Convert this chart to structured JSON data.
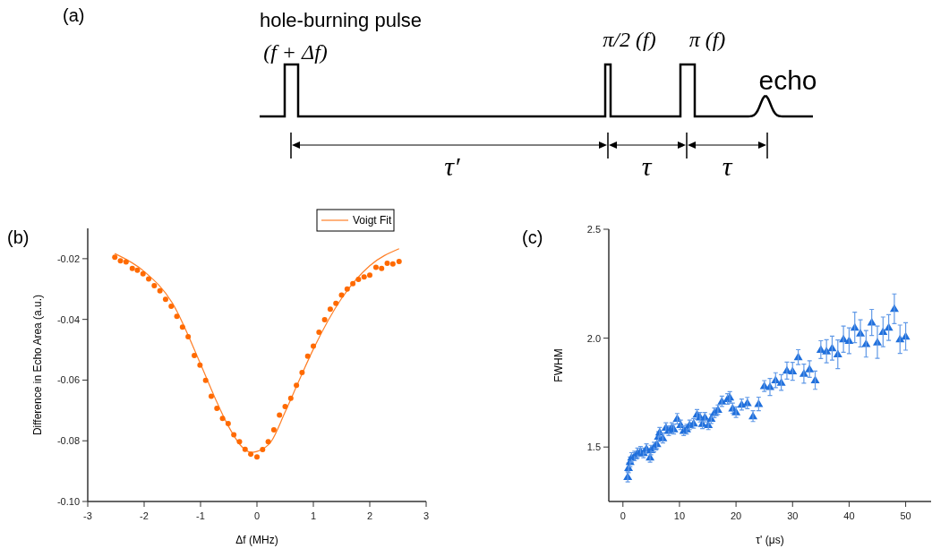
{
  "chart_data": [
    {
      "type": "other",
      "title": "(a)",
      "annotations": [
        "hole-burning pulse",
        "(f + Δf)",
        "π/2 (f)",
        "π (f)",
        "echo",
        "τ′",
        "τ",
        "τ"
      ]
    },
    {
      "type": "scatter",
      "title": "(b)",
      "xlabel": "Δf (MHz)",
      "ylabel": "Difference in Echo Area (a.u.)",
      "xlim": [
        -3,
        3
      ],
      "ylim": [
        -0.1,
        -0.01
      ],
      "xticks": [
        -3,
        -2,
        -1,
        0,
        1,
        2,
        3
      ],
      "yticks": [
        {
          "value": -0.1,
          "label": "-0.10"
        },
        {
          "value": -0.08,
          "label": "-0.08"
        },
        {
          "value": -0.06,
          "label": "-0.06"
        },
        {
          "value": -0.04,
          "label": "-0.04"
        },
        {
          "value": -0.02,
          "label": "-0.02"
        }
      ],
      "legend": "top right",
      "series": [
        {
          "type": "scatter",
          "color": "#ff6a00",
          "marker": "circle",
          "x": [
            -2.52,
            -2.42,
            -2.32,
            -2.21,
            -2.12,
            -2.02,
            -1.92,
            -1.82,
            -1.72,
            -1.62,
            -1.52,
            -1.42,
            -1.32,
            -1.22,
            -1.11,
            -1.01,
            -0.91,
            -0.81,
            -0.71,
            -0.61,
            -0.51,
            -0.41,
            -0.31,
            -0.21,
            -0.11,
            0.0,
            0.1,
            0.2,
            0.3,
            0.4,
            0.5,
            0.6,
            0.7,
            0.8,
            0.9,
            1.0,
            1.1,
            1.2,
            1.3,
            1.4,
            1.5,
            1.6,
            1.7,
            1.8,
            1.9,
            2.0,
            2.11,
            2.21,
            2.31,
            2.41,
            2.52
          ],
          "values": [
            -0.0195,
            -0.0207,
            -0.0211,
            -0.0232,
            -0.0238,
            -0.025,
            -0.0267,
            -0.0289,
            -0.0306,
            -0.0334,
            -0.0357,
            -0.039,
            -0.0425,
            -0.0457,
            -0.0519,
            -0.0551,
            -0.0601,
            -0.0653,
            -0.0693,
            -0.0726,
            -0.0743,
            -0.078,
            -0.0803,
            -0.0828,
            -0.0844,
            -0.0853,
            -0.0829,
            -0.0803,
            -0.0764,
            -0.0715,
            -0.0687,
            -0.066,
            -0.0617,
            -0.0575,
            -0.0521,
            -0.0488,
            -0.0442,
            -0.0401,
            -0.0366,
            -0.0347,
            -0.032,
            -0.03,
            -0.0282,
            -0.0268,
            -0.026,
            -0.0254,
            -0.0228,
            -0.0232,
            -0.0215,
            -0.0217,
            -0.0209
          ]
        },
        {
          "type": "line",
          "name": "Voigt Fit",
          "color": "#ff7f27",
          "x": [
            -2.52,
            -2.0,
            -1.5,
            -1.0,
            -0.75,
            -0.5,
            -0.25,
            -0.1,
            0.0,
            0.25,
            0.5,
            0.75,
            1.0,
            1.5,
            2.0,
            2.52
          ],
          "values": [
            -0.0183,
            -0.0242,
            -0.0346,
            -0.0547,
            -0.0656,
            -0.0754,
            -0.0823,
            -0.0838,
            -0.0835,
            -0.0803,
            -0.0705,
            -0.06,
            -0.0498,
            -0.0331,
            -0.0223,
            -0.0167
          ]
        }
      ]
    },
    {
      "type": "scatter",
      "title": "(c)",
      "xlabel": "τ' (μs)",
      "ylabel": "FWHM",
      "xlim": [
        -2.5,
        54.5
      ],
      "ylim": [
        1.25,
        2.5
      ],
      "xticks": [
        0,
        10,
        20,
        30,
        40,
        50
      ],
      "yticks": [
        {
          "value": 1.5,
          "label": "1.5"
        },
        {
          "value": 2,
          "label": "2.0"
        },
        {
          "value": 2.5,
          "label": "2.5"
        }
      ],
      "marker": "triangle",
      "series": [
        {
          "type": "scatter",
          "color": "#1f6fdc",
          "x": [
            0.85,
            0.99,
            1.27,
            1.53,
            2.06,
            2.58,
            3.11,
            3.64,
            4.16,
            4.8,
            4.95,
            5.5,
            6.0,
            6.27,
            6.5,
            7.06,
            7.6,
            8.1,
            8.64,
            9.0,
            9.6,
            10.2,
            10.75,
            11.27,
            11.8,
            12.5,
            13.1,
            13.65,
            14.06,
            14.5,
            15.1,
            15.6,
            16.17,
            16.8,
            17.5,
            18.5,
            18.9,
            19.4,
            20,
            21,
            22,
            23,
            24,
            25,
            26,
            27,
            28,
            29,
            30,
            31,
            32,
            33,
            34,
            35,
            36,
            37,
            38,
            39,
            40,
            41,
            42,
            43,
            44,
            45,
            46,
            47,
            48,
            49,
            50
          ],
          "values": [
            1.363,
            1.404,
            1.432,
            1.452,
            1.459,
            1.473,
            1.48,
            1.473,
            1.493,
            1.452,
            1.486,
            1.5,
            1.514,
            1.548,
            1.568,
            1.541,
            1.589,
            1.575,
            1.589,
            1.582,
            1.63,
            1.602,
            1.575,
            1.582,
            1.602,
            1.609,
            1.65,
            1.637,
            1.607,
            1.637,
            1.602,
            1.63,
            1.657,
            1.671,
            1.71,
            1.721,
            1.728,
            1.678,
            1.66,
            1.695,
            1.702,
            1.642,
            1.698,
            1.78,
            1.776,
            1.807,
            1.796,
            1.851,
            1.848,
            1.913,
            1.837,
            1.858,
            1.807,
            1.947,
            1.94,
            1.954,
            1.926,
            1.995,
            1.988,
            2.049,
            2.022,
            1.974,
            2.072,
            1.981,
            2.029,
            2.049,
            2.135,
            1.995,
            2.008
          ],
          "errors": [
            0.023,
            0.022,
            0.022,
            0.022,
            0.022,
            0.022,
            0.022,
            0.022,
            0.022,
            0.022,
            0.022,
            0.022,
            0.022,
            0.022,
            0.022,
            0.022,
            0.022,
            0.022,
            0.022,
            0.022,
            0.024,
            0.022,
            0.022,
            0.022,
            0.022,
            0.022,
            0.022,
            0.022,
            0.022,
            0.022,
            0.022,
            0.022,
            0.022,
            0.022,
            0.024,
            0.024,
            0.026,
            0.024,
            0.024,
            0.025,
            0.026,
            0.025,
            0.031,
            0.025,
            0.039,
            0.034,
            0.036,
            0.039,
            0.041,
            0.034,
            0.044,
            0.038,
            0.042,
            0.041,
            0.053,
            0.055,
            0.066,
            0.06,
            0.059,
            0.07,
            0.062,
            0.061,
            0.06,
            0.074,
            0.068,
            0.059,
            0.068,
            0.065,
            0.063
          ]
        }
      ]
    }
  ]
}
